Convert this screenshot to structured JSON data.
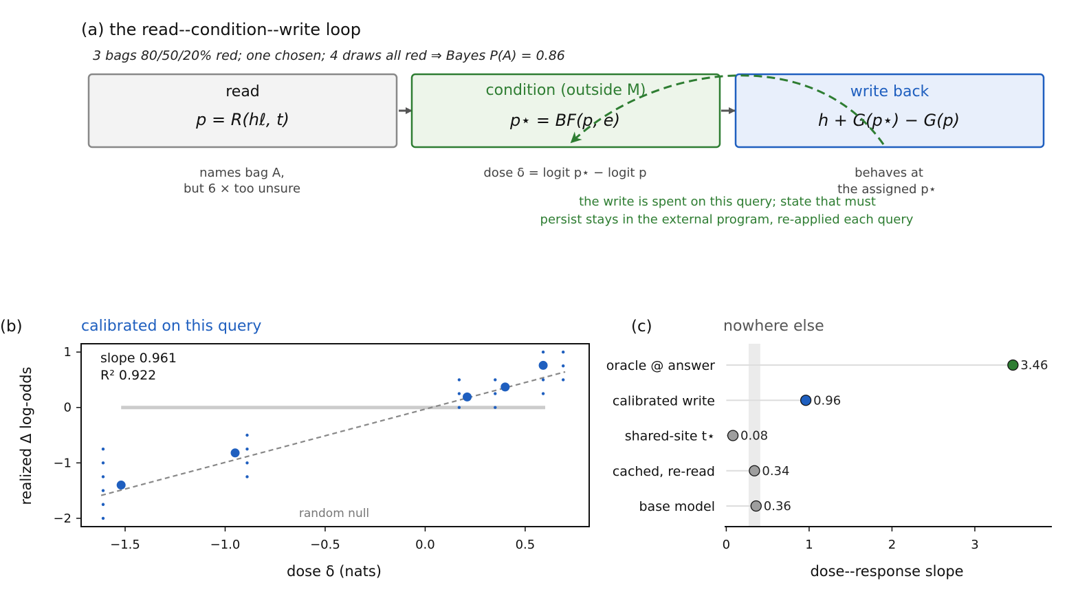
{
  "panel_a": {
    "title": "(a) the read--condition--write loop",
    "subtitle_prefix": "3 bags 80/50/20% red; one chosen; 4 draws all red ⇒ Bayes ",
    "subtitle_value": "P(A) = 0.86",
    "read": {
      "title": "read",
      "formula": "p = R(hℓ, t)",
      "note_line1": "names bag A,",
      "note_line2": "but 6 ×  too unsure"
    },
    "condition": {
      "title": "condition (outside M)",
      "formula": "p⋆ = BF(p, e)",
      "note": "dose δ = logit p⋆ − logit p"
    },
    "write": {
      "title": "write back",
      "formula": "h + G(p⋆) − G(p)",
      "note_line1": "behaves at",
      "note_line2": "the assigned p⋆"
    },
    "loop_note_line1": "the write is spent on this query; state that must",
    "loop_note_line2": "persist stays in the external program, re-applied each query",
    "colors": {
      "read_edge": "#888888",
      "read_fill": "#f3f3f3",
      "cond_edge": "#2e7d32",
      "cond_fill": "#edf5ea",
      "write_edge": "#1f5fbf",
      "write_fill": "#e8effb"
    }
  },
  "chart_data": [
    {
      "panel": "b",
      "type": "scatter",
      "panel_label": "(b)",
      "title": "calibrated on this query",
      "xlabel": "dose δ (nats)",
      "ylabel": "realized Δ log-odds",
      "xlim": [
        -1.72,
        0.82
      ],
      "ylim": [
        -2.15,
        1.15
      ],
      "xticks": [
        -1.5,
        -1.0,
        -0.5,
        0.0,
        0.5
      ],
      "xtick_labels": [
        "−1.5",
        "−1.0",
        "−0.5",
        "0.0",
        "0.5"
      ],
      "yticks": [
        1,
        0,
        -1,
        -2
      ],
      "ytick_labels": [
        "1",
        "0",
        "−1",
        "−2"
      ],
      "annotation_slope": "slope 0.961",
      "annotation_r2": "R² 0.922",
      "null_label": "random null",
      "null_line": {
        "x": [
          -1.52,
          0.6
        ],
        "y": [
          0.0,
          0.0
        ]
      },
      "fit_line": {
        "x": [
          -1.62,
          0.7
        ],
        "slope": 0.961,
        "intercept": -0.03
      },
      "means": [
        {
          "x": -1.52,
          "y": -1.4
        },
        {
          "x": -0.95,
          "y": -0.82
        },
        {
          "x": 0.21,
          "y": 0.19
        },
        {
          "x": 0.4,
          "y": 0.37
        },
        {
          "x": 0.59,
          "y": 0.76
        }
      ],
      "points": [
        {
          "x": -1.61,
          "y": -0.75
        },
        {
          "x": -1.61,
          "y": -1.0
        },
        {
          "x": -1.61,
          "y": -1.25
        },
        {
          "x": -1.61,
          "y": -1.5
        },
        {
          "x": -1.61,
          "y": -1.75
        },
        {
          "x": -1.61,
          "y": -2.0
        },
        {
          "x": -0.89,
          "y": -0.5
        },
        {
          "x": -0.89,
          "y": -0.75
        },
        {
          "x": -0.89,
          "y": -1.0
        },
        {
          "x": -0.89,
          "y": -1.25
        },
        {
          "x": 0.17,
          "y": 0.5
        },
        {
          "x": 0.17,
          "y": 0.25
        },
        {
          "x": 0.17,
          "y": 0.0
        },
        {
          "x": 0.35,
          "y": 0.5
        },
        {
          "x": 0.35,
          "y": 0.25
        },
        {
          "x": 0.35,
          "y": 0.0
        },
        {
          "x": 0.59,
          "y": 1.0
        },
        {
          "x": 0.59,
          "y": 0.5
        },
        {
          "x": 0.59,
          "y": 0.25
        },
        {
          "x": 0.69,
          "y": 1.0
        },
        {
          "x": 0.69,
          "y": 0.75
        },
        {
          "x": 0.69,
          "y": 0.5
        }
      ],
      "colors": {
        "points": "#1f5fbf",
        "fit": "#888888",
        "null": "#cccccc",
        "title": "#1f5fbf"
      }
    },
    {
      "panel": "c",
      "type": "bar",
      "panel_label": "(c)",
      "title": "nowhere else",
      "xlabel": "dose--response slope",
      "xlim": [
        -0.02,
        3.93
      ],
      "xticks": [
        0,
        1,
        2,
        3
      ],
      "xtick_labels": [
        "0",
        "1",
        "2",
        "3"
      ],
      "null_band": [
        0.27,
        0.41
      ],
      "categories": [
        "oracle @ answer",
        "calibrated write",
        "shared-site t⋆",
        "cached, re-read",
        "base model"
      ],
      "values": [
        3.46,
        0.96,
        0.08,
        0.34,
        0.36
      ],
      "value_labels": [
        "3.46",
        "0.96",
        "0.08",
        "0.34",
        "0.36"
      ],
      "marker_colors": [
        "#2e7d32",
        "#1f5fbf",
        "#9e9e9e",
        "#9e9e9e",
        "#9e9e9e"
      ],
      "colors": {
        "band": "#ebebeb",
        "stem": "#dddddd",
        "title": "#555555"
      }
    }
  ]
}
